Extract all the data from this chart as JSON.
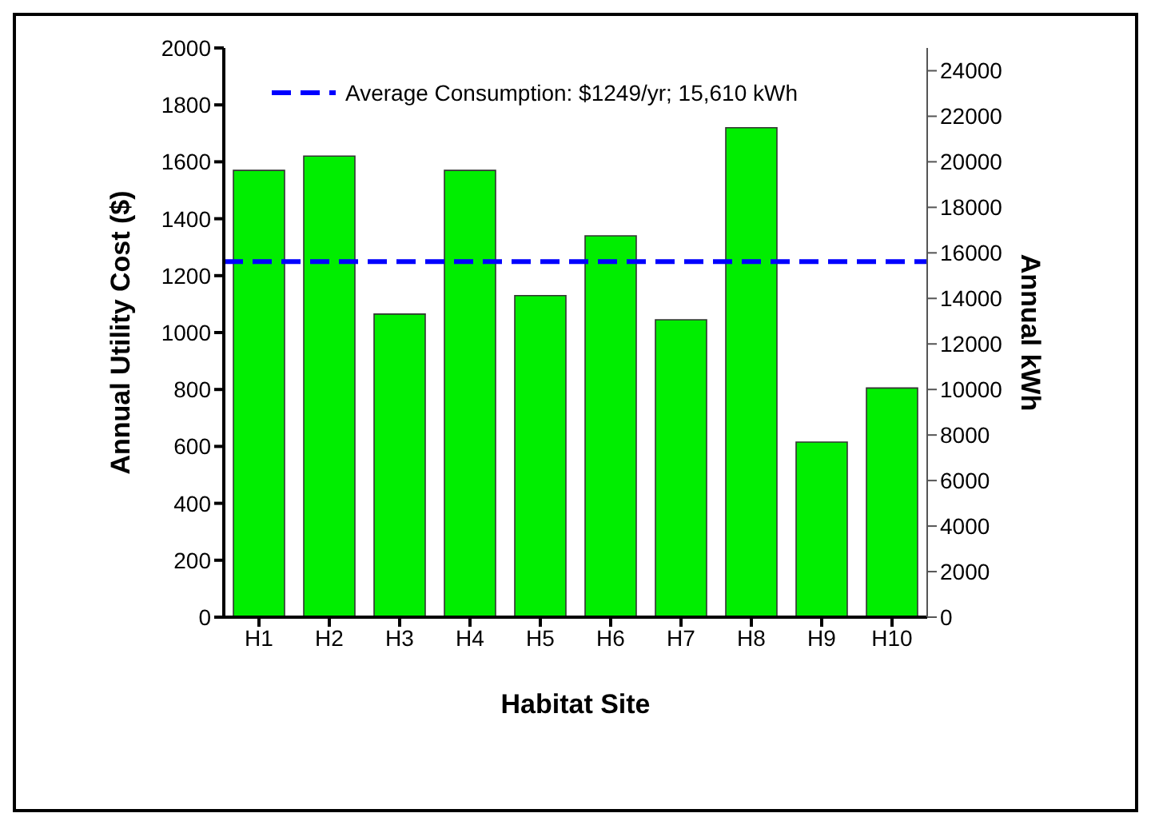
{
  "chart_data": {
    "type": "bar",
    "xlabel": "Habitat Site",
    "ylabel": "Annual Utility Cost ($)",
    "y2label": "Annual kWh",
    "categories": [
      "H1",
      "H2",
      "H3",
      "H4",
      "H5",
      "H6",
      "H7",
      "H8",
      "H9",
      "H10"
    ],
    "values": [
      1570,
      1620,
      1065,
      1570,
      1130,
      1340,
      1045,
      1720,
      615,
      805
    ],
    "color": "#00ee00",
    "ylim": [
      0,
      2000
    ],
    "yticks": [
      0,
      200,
      400,
      600,
      800,
      1000,
      1200,
      1400,
      1600,
      1800,
      2000
    ],
    "y2lim": [
      0,
      25000
    ],
    "y2ticks": [
      0,
      2000,
      4000,
      6000,
      8000,
      10000,
      12000,
      14000,
      16000,
      18000,
      20000,
      22000,
      24000
    ],
    "ref_lines": [
      {
        "axis": "y",
        "value": 1249,
        "label": "Average Consumption: $1249/yr; 15,610 kWh",
        "color": "#0000ff",
        "line_style": "dashed"
      }
    ],
    "grid": false
  }
}
